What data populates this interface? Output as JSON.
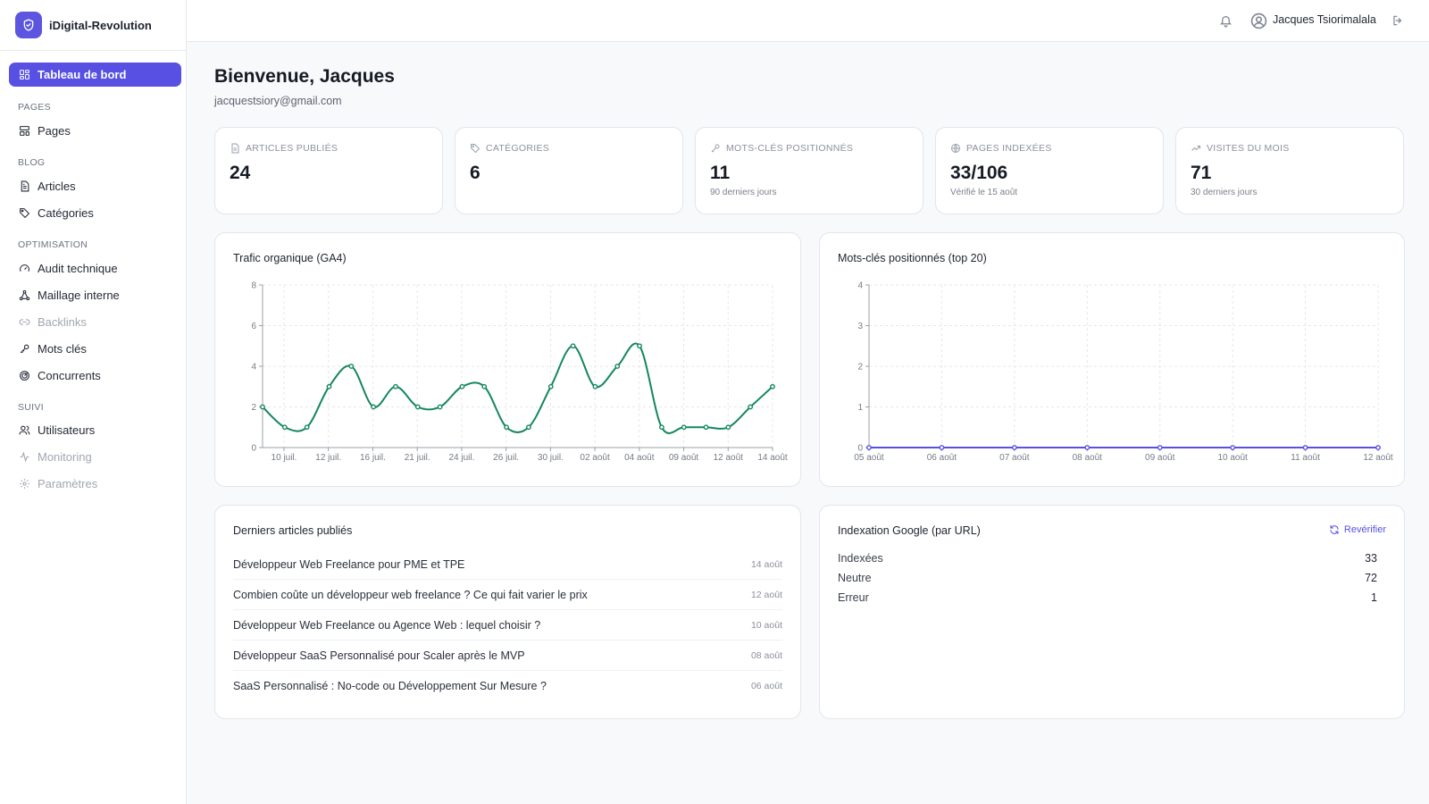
{
  "brand": {
    "name": "iDigital-Revolution",
    "icon": "shield-check-icon",
    "accent": "#5750e2"
  },
  "sidebar": {
    "active": {
      "label": "Tableau de bord",
      "icon": "dashboard-grid-icon"
    },
    "sections": [
      {
        "title": "PAGES",
        "items": [
          {
            "label": "Pages",
            "icon": "layout-icon",
            "enabled": true
          }
        ]
      },
      {
        "title": "BLOG",
        "items": [
          {
            "label": "Articles",
            "icon": "file-text-icon",
            "enabled": true
          },
          {
            "label": "Catégories",
            "icon": "tag-icon",
            "enabled": true
          }
        ]
      },
      {
        "title": "OPTIMISATION",
        "items": [
          {
            "label": "Audit technique",
            "icon": "gauge-icon",
            "enabled": true
          },
          {
            "label": "Maillage interne",
            "icon": "network-icon",
            "enabled": true
          },
          {
            "label": "Backlinks",
            "icon": "link-icon",
            "enabled": false
          },
          {
            "label": "Mots clés",
            "icon": "key-icon",
            "enabled": true
          },
          {
            "label": "Concurrents",
            "icon": "radar-icon",
            "enabled": true
          }
        ]
      },
      {
        "title": "SUIVI",
        "items": [
          {
            "label": "Utilisateurs",
            "icon": "users-icon",
            "enabled": true
          },
          {
            "label": "Monitoring",
            "icon": "activity-icon",
            "enabled": false
          },
          {
            "label": "Paramètres",
            "icon": "gear-icon",
            "enabled": false
          }
        ]
      }
    ]
  },
  "topbar": {
    "user_name": "Jacques Tsiorimalala",
    "notification_icon": "bell-icon",
    "user_icon": "user-circle-icon",
    "logout_icon": "logout-icon"
  },
  "welcome": {
    "title": "Bienvenue, Jacques",
    "email": "jacquestsiory@gmail.com"
  },
  "stats": [
    {
      "label": "ARTICLES PUBLIÉS",
      "icon": "file-text-icon",
      "value": "24",
      "sub": ""
    },
    {
      "label": "CATÉGORIES",
      "icon": "tag-icon",
      "value": "6",
      "sub": ""
    },
    {
      "label": "MOTS-CLÉS POSITIONNÉS",
      "icon": "key-icon",
      "value": "11",
      "sub": "90 derniers jours"
    },
    {
      "label": "PAGES INDEXÉES",
      "icon": "globe-icon",
      "value": "33/106",
      "sub": "Vérifié le 15 août"
    },
    {
      "label": "VISITES DU MOIS",
      "icon": "trending-up-icon",
      "value": "71",
      "sub": "30 derniers jours"
    }
  ],
  "panels": {
    "traffic_title": "Trafic organique (GA4)",
    "keywords_title": "Mots-clés positionnés (top 20)",
    "articles_title": "Derniers articles publiés",
    "indexation_title": "Indexation Google (par URL)",
    "recheck_label": "Revérifier",
    "recheck_icon": "refresh-icon"
  },
  "articles": [
    {
      "title": "Développeur Web Freelance pour PME et TPE",
      "date": "14 août"
    },
    {
      "title": "Combien coûte un développeur web freelance ? Ce qui fait varier le prix",
      "date": "12 août"
    },
    {
      "title": "Développeur Web Freelance ou Agence Web : lequel choisir ?",
      "date": "10 août"
    },
    {
      "title": "Développeur SaaS Personnalisé pour Scaler après le MVP",
      "date": "08 août"
    },
    {
      "title": "SaaS Personnalisé : No-code ou Développement Sur Mesure ?",
      "date": "06 août"
    }
  ],
  "indexation": [
    {
      "label": "Indexées",
      "value": "33"
    },
    {
      "label": "Neutre",
      "value": "72"
    },
    {
      "label": "Erreur",
      "value": "1"
    }
  ],
  "chart_data": [
    {
      "type": "line",
      "title": "Trafic organique (GA4)",
      "xlabel": "",
      "ylabel": "",
      "ylim": [
        0,
        8
      ],
      "yticks": [
        0,
        2,
        4,
        6,
        8
      ],
      "grid": true,
      "color": "#14875e",
      "x_tick_labels": [
        "10 juil.",
        "12 juil.",
        "16 juil.",
        "21 juil.",
        "24 juil.",
        "26 juil.",
        "30 juil.",
        "02 août",
        "04 août",
        "09 août",
        "12 août",
        "14 août"
      ],
      "values": [
        2,
        1,
        1,
        3,
        4,
        2,
        3,
        2,
        2,
        3,
        3,
        1,
        1,
        3,
        5,
        3,
        4,
        5,
        1,
        1,
        1,
        1,
        2,
        3
      ]
    },
    {
      "type": "line",
      "title": "Mots-clés positionnés (top 20)",
      "xlabel": "",
      "ylabel": "",
      "ylim": [
        0,
        4
      ],
      "yticks": [
        0,
        1,
        2,
        3,
        4
      ],
      "grid": true,
      "color": "#5750e2",
      "x_tick_labels": [
        "05 août",
        "06 août",
        "07 août",
        "08 août",
        "09 août",
        "10 août",
        "11 août",
        "12 août"
      ],
      "values": [
        0,
        0,
        0,
        0,
        0,
        0,
        0,
        0
      ]
    }
  ]
}
